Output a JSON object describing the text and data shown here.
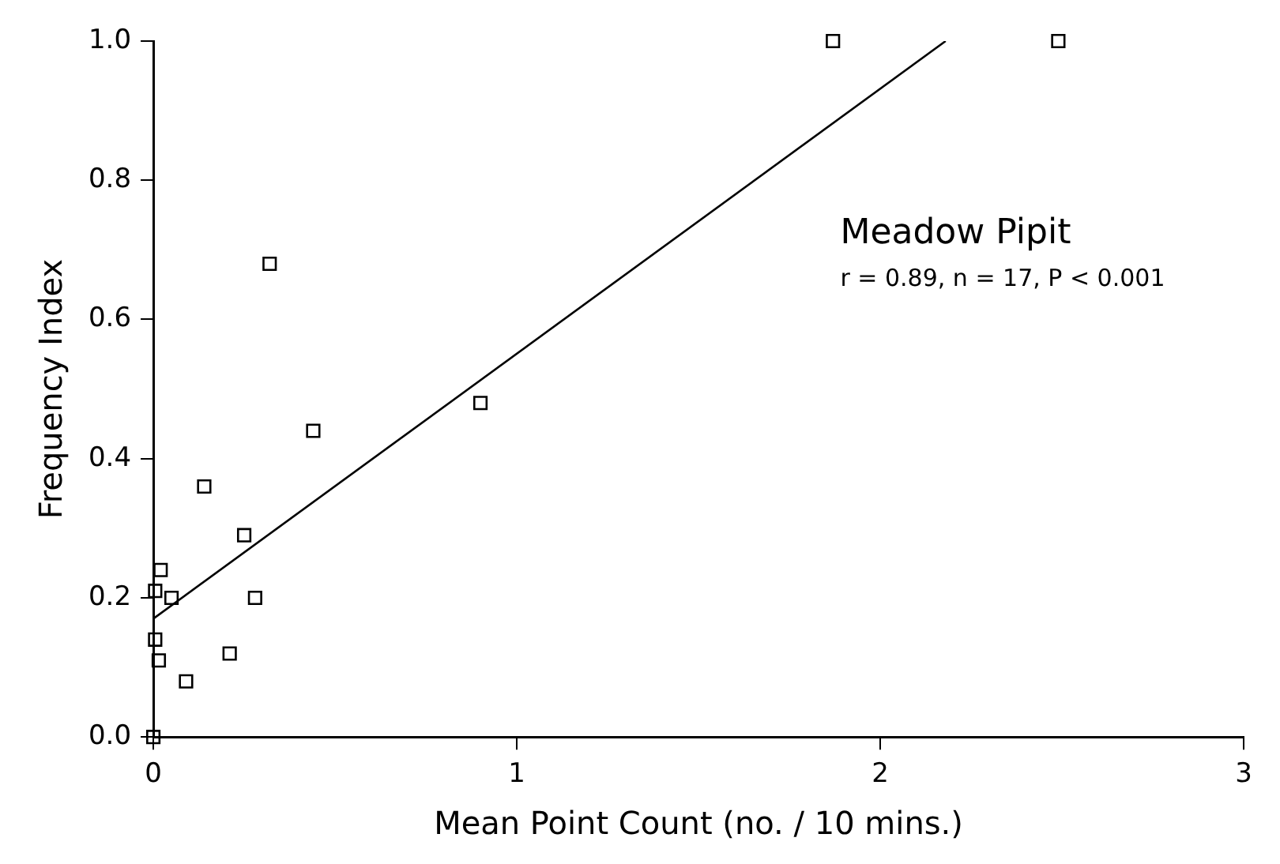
{
  "chart_data": {
    "type": "scatter",
    "xlabel": "Mean Point Count (no. / 10 mins.)",
    "ylabel": "Frequency Index",
    "annotations": [
      "Meadow Pipit",
      "r = 0.89, n = 17, P < 0.001"
    ],
    "xlim": [
      0,
      3
    ],
    "xticks": [
      0,
      1,
      2,
      3
    ],
    "ylim": [
      0,
      1
    ],
    "yticks": [
      {
        "value": 0,
        "label": "0.0"
      },
      {
        "value": 0.2,
        "label": "0.2"
      },
      {
        "value": 0.4,
        "label": "0.4"
      },
      {
        "value": 0.6,
        "label": "0.6"
      },
      {
        "value": 0.8,
        "label": "0.8"
      },
      {
        "value": 1,
        "label": "1.0"
      }
    ],
    "grid": false,
    "legend": false,
    "series": [
      {
        "type": "scatter",
        "marker": "square",
        "color": "#000000",
        "x": [
          1.87,
          2.49,
          0.32,
          0.9,
          0.44,
          0.14,
          0.25,
          0.28,
          0.21,
          0.09,
          0.02,
          0.005,
          0.05,
          0.005,
          0.015,
          0
        ],
        "values": [
          1.0,
          1.0,
          0.68,
          0.48,
          0.44,
          0.36,
          0.29,
          0.2,
          0.12,
          0.08,
          0.24,
          0.21,
          0.2,
          0.14,
          0.11,
          0
        ]
      },
      {
        "type": "line",
        "color": "#000000",
        "x": [
          0,
          2.18
        ],
        "values": [
          0.17,
          1.0
        ]
      }
    ]
  }
}
